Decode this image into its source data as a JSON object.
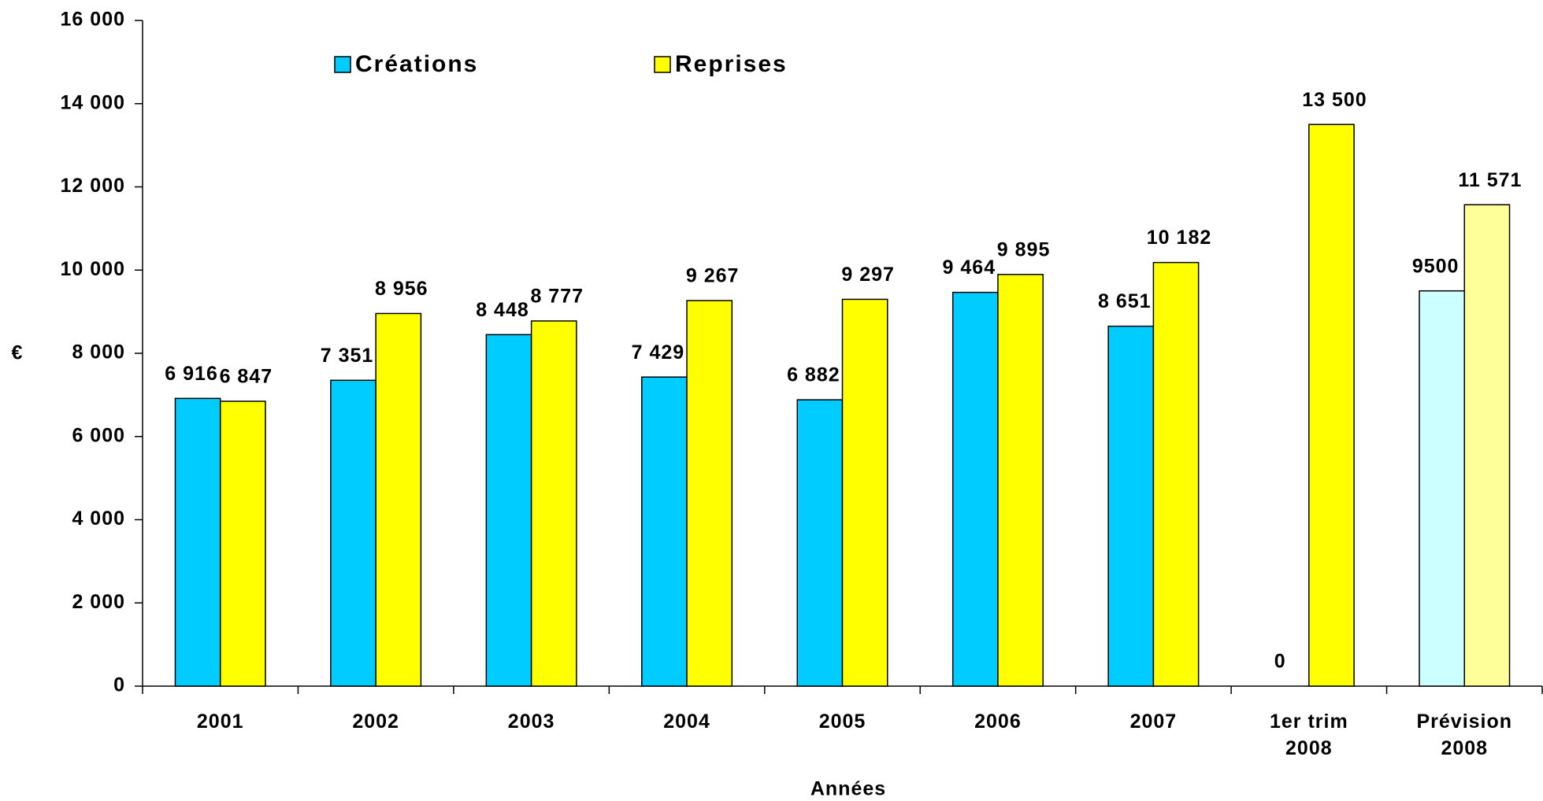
{
  "chart_data": {
    "type": "bar",
    "categories": [
      "2001",
      "2002",
      "2003",
      "2004",
      "2005",
      "2006",
      "2007",
      "1er trim 2008",
      "Prévision 2008"
    ],
    "series": [
      {
        "name": "Créations",
        "color": "#00CCFF",
        "colors": [
          "#00CCFF",
          "#00CCFF",
          "#00CCFF",
          "#00CCFF",
          "#00CCFF",
          "#00CCFF",
          "#00CCFF",
          "#00CCFF",
          "#CCFFFF"
        ],
        "values": [
          6916,
          7351,
          8448,
          7429,
          6882,
          9464,
          8651,
          0,
          9500
        ],
        "value_labels": [
          "6 916",
          "7 351",
          "8 448",
          "7 429",
          "6 882",
          "9 464",
          "8 651",
          "0",
          "9500"
        ]
      },
      {
        "name": "Reprises",
        "color": "#FFFF00",
        "colors": [
          "#FFFF00",
          "#FFFF00",
          "#FFFF00",
          "#FFFF00",
          "#FFFF00",
          "#FFFF00",
          "#FFFF00",
          "#FFFF00",
          "#FFFF99"
        ],
        "values": [
          6847,
          8956,
          8777,
          9267,
          9297,
          9895,
          10182,
          13500,
          11571
        ],
        "value_labels": [
          "6 847",
          "8 956",
          "8 777",
          "9 267",
          "9 297",
          "9 895",
          "10 182",
          "13 500",
          "11 571"
        ]
      }
    ],
    "ylabel": "€",
    "xlabel": "Années",
    "ylim": [
      0,
      16000
    ],
    "yticks": [
      0,
      {
        "value": 2000,
        "label": "2 000"
      },
      {
        "value": 4000,
        "label": "4 000"
      },
      {
        "value": 6000,
        "label": "6 000"
      },
      {
        "value": 8000,
        "label": "8 000"
      },
      {
        "value": 10000,
        "label": "10 000"
      },
      {
        "value": 12000,
        "label": "12 000"
      },
      {
        "value": 14000,
        "label": "14 000"
      },
      {
        "value": 16000,
        "label": "16 000"
      }
    ],
    "legend": "top-left"
  }
}
